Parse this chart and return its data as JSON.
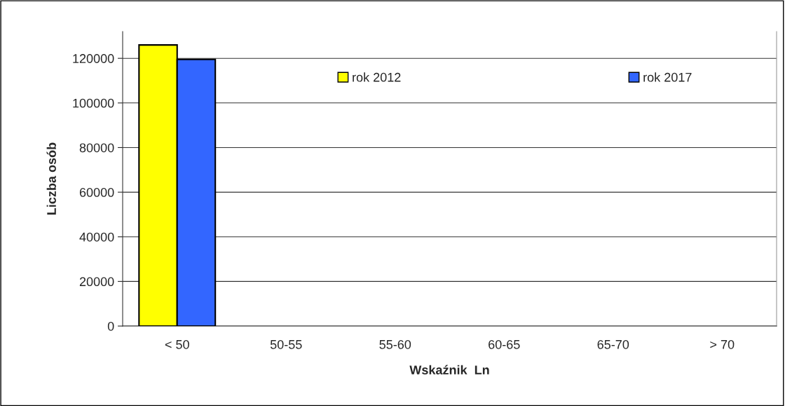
{
  "chart_data": {
    "type": "bar",
    "xlabel": "Wskaźnik  Ln",
    "ylabel": "Liczba osób",
    "categories": [
      "< 50",
      "50-55",
      "55-60",
      "60-65",
      "65-70",
      "> 70"
    ],
    "series": [
      {
        "name": "rok 2012",
        "color": "#ffff00",
        "values": [
          126000,
          null,
          null,
          null,
          null,
          null
        ]
      },
      {
        "name": "rok 2017",
        "color": "#3366ff",
        "values": [
          119500,
          null,
          null,
          null,
          null,
          null
        ]
      }
    ],
    "ylim": [
      0,
      132000
    ],
    "yticks": [
      0,
      20000,
      40000,
      60000,
      80000,
      100000,
      120000
    ],
    "grid": "y",
    "legend": "top"
  }
}
